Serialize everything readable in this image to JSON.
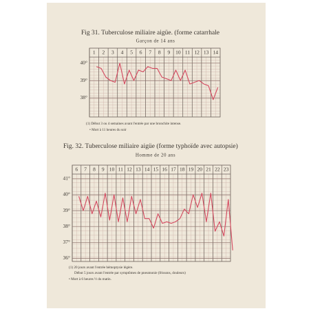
{
  "chart_data": [
    {
      "type": "line",
      "title": "Fig 31. Tuberculose miliaire aigüe. (forme catarrhale",
      "subtitle": "Garçon de 14 ans",
      "notes": [
        "(1) Début 3 ou 4 semaines avant l'entrée par une bronchite intense.",
        "• Mort à 11 heures du soir"
      ],
      "xlim": [
        0.5,
        14.5
      ],
      "xticks": [
        1,
        2,
        3,
        4,
        5,
        6,
        7,
        8,
        9,
        10,
        11,
        12,
        13,
        14
      ],
      "x": [
        1.25,
        1.75,
        2.25,
        2.75,
        3.25,
        3.75,
        4.25,
        4.75,
        5.25,
        5.75,
        6.25,
        6.75,
        7.25,
        7.75,
        8.25,
        8.75,
        9.25,
        9.75,
        10.25,
        10.75,
        11.25,
        11.75,
        12.25,
        12.75,
        13.25,
        13.75,
        14.25
      ],
      "values": [
        39.8,
        39.7,
        39.2,
        39.0,
        38.9,
        40.0,
        38.8,
        39.6,
        39.0,
        39.6,
        39.5,
        39.8,
        39.7,
        39.7,
        39.2,
        39.1,
        39.0,
        39.6,
        39.0,
        39.6,
        38.8,
        38.9,
        39.0,
        38.8,
        38.7,
        37.9,
        38.6
      ],
      "color": "#d4485e",
      "ylim": [
        36.9,
        40.35
      ],
      "yticks": [
        {
          "value": 40,
          "label": "40°"
        },
        {
          "value": 39,
          "label": "39°"
        },
        {
          "value": 38,
          "label": "38°"
        }
      ],
      "grid": true
    },
    {
      "type": "line",
      "title": "Fig. 32. Tuberculose miliaire aigüe (forme typhoïde avec autopsie)",
      "subtitle": "Homme de 20 ans",
      "notes": [
        "(1) 20 jours avant l'entrée hémoptysie légère.",
        "Début 5 jours avant l'entrée par symptômes de pneumonie (frissons, douleurs)",
        "• Mort à 6 heures ½ du matin."
      ],
      "xlim": [
        5.5,
        23.5
      ],
      "xticks": [
        6,
        7,
        8,
        9,
        10,
        11,
        12,
        13,
        14,
        15,
        16,
        17,
        18,
        19,
        20,
        21,
        22,
        23
      ],
      "x": [
        6.25,
        6.75,
        7.25,
        7.75,
        8.25,
        8.75,
        9.25,
        9.75,
        10.25,
        10.75,
        11.25,
        11.75,
        12.25,
        12.75,
        13.25,
        13.75,
        14.25,
        14.75,
        15.25,
        15.75,
        16.25,
        16.75,
        17.25,
        17.75,
        18.25,
        18.75,
        19.25,
        19.75,
        20.25,
        20.75,
        21.25,
        21.75,
        22.25,
        22.75,
        23.25,
        23.75
      ],
      "values": [
        39.9,
        39.0,
        39.9,
        38.8,
        39.6,
        38.6,
        40.1,
        38.4,
        40.0,
        38.3,
        39.8,
        38.3,
        39.9,
        38.8,
        39.7,
        38.5,
        38.5,
        37.9,
        38.8,
        38.2,
        38.3,
        38.2,
        38.3,
        38.5,
        39.1,
        38.8,
        40.0,
        39.2,
        40.1,
        38.3,
        40.1,
        37.7,
        38.3,
        37.4,
        39.7,
        36.5
      ],
      "color": "#d4485e",
      "ylim": [
        35.8,
        41.3
      ],
      "yticks": [
        {
          "value": 41,
          "label": "41°"
        },
        {
          "value": 40,
          "label": "40°"
        },
        {
          "value": 39,
          "label": "39°"
        },
        {
          "value": 38,
          "label": "38°"
        },
        {
          "value": 37,
          "label": "37°"
        },
        {
          "value": 36,
          "label": "36°"
        }
      ],
      "grid": true
    }
  ]
}
